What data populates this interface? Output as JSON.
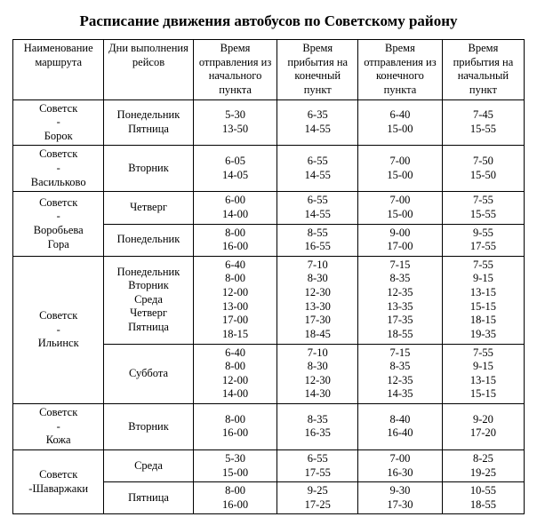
{
  "title": "Расписание движения автобусов по Советскому району",
  "headers": [
    "Наименование маршрута",
    "Дни выполнения рейсов",
    "Время отправления из начального пункта",
    "Время прибытия на конечный пункт",
    "Время отправления из конечного пункта",
    "Время прибытия на начальный пункт"
  ],
  "rows": [
    {
      "route": "Советск - Борок",
      "rs": 1,
      "days": "Понедельник Пятница",
      "t": [
        [
          "5-30",
          "13-50"
        ],
        [
          "6-35",
          "14-55"
        ],
        [
          "6-40",
          "15-00"
        ],
        [
          "7-45",
          "15-55"
        ]
      ]
    },
    {
      "route": "Советск - Васильково",
      "rs": 1,
      "days": "Вторник",
      "t": [
        [
          "6-05",
          "14-05"
        ],
        [
          "6-55",
          "14-55"
        ],
        [
          "7-00",
          "15-00"
        ],
        [
          "7-50",
          "15-50"
        ]
      ]
    },
    {
      "route": "Советск - Воробьева Гора",
      "rs": 2,
      "days": "Четверг",
      "t": [
        [
          "6-00",
          "14-00"
        ],
        [
          "6-55",
          "14-55"
        ],
        [
          "7-00",
          "15-00"
        ],
        [
          "7-55",
          "15-55"
        ]
      ]
    },
    {
      "days": "Понедельник",
      "t": [
        [
          "8-00",
          "16-00"
        ],
        [
          "8-55",
          "16-55"
        ],
        [
          "9-00",
          "17-00"
        ],
        [
          "9-55",
          "17-55"
        ]
      ]
    },
    {
      "route": "Советск - Ильинск",
      "rs": 2,
      "days": "Понедельник Вторник Среда Четверг Пятница",
      "t": [
        [
          "6-40",
          "8-00",
          "12-00",
          "13-00",
          "17-00",
          "18-15"
        ],
        [
          "7-10",
          "8-30",
          "12-30",
          "13-30",
          "17-30",
          "18-45"
        ],
        [
          "7-15",
          "8-35",
          "12-35",
          "13-35",
          "17-35",
          "18-55"
        ],
        [
          "7-55",
          "9-15",
          "13-15",
          "15-15",
          "18-15",
          "19-35"
        ]
      ]
    },
    {
      "days": "Суббота",
      "t": [
        [
          "6-40",
          "8-00",
          "12-00",
          "14-00"
        ],
        [
          "7-10",
          "8-30",
          "12-30",
          "14-30"
        ],
        [
          "7-15",
          "8-35",
          "12-35",
          "14-35"
        ],
        [
          "7-55",
          "9-15",
          "13-15",
          "15-15"
        ]
      ]
    },
    {
      "route": "Советск - Кожа",
      "rs": 1,
      "days": "Вторник",
      "t": [
        [
          "8-00",
          "16-00"
        ],
        [
          "8-35",
          "16-35"
        ],
        [
          "8-40",
          "16-40"
        ],
        [
          "9-20",
          "17-20"
        ]
      ]
    },
    {
      "route": "Советск -Шаваржаки",
      "rs": 2,
      "days": "Среда",
      "t": [
        [
          "5-30",
          "15-00"
        ],
        [
          "6-55",
          "17-55"
        ],
        [
          "7-00",
          "16-30"
        ],
        [
          "8-25",
          "19-25"
        ]
      ]
    },
    {
      "days": "Пятница",
      "t": [
        [
          "8-00",
          "16-00"
        ],
        [
          "9-25",
          "17-25"
        ],
        [
          "9-30",
          "17-30"
        ],
        [
          "10-55",
          "18-55"
        ]
      ]
    }
  ]
}
